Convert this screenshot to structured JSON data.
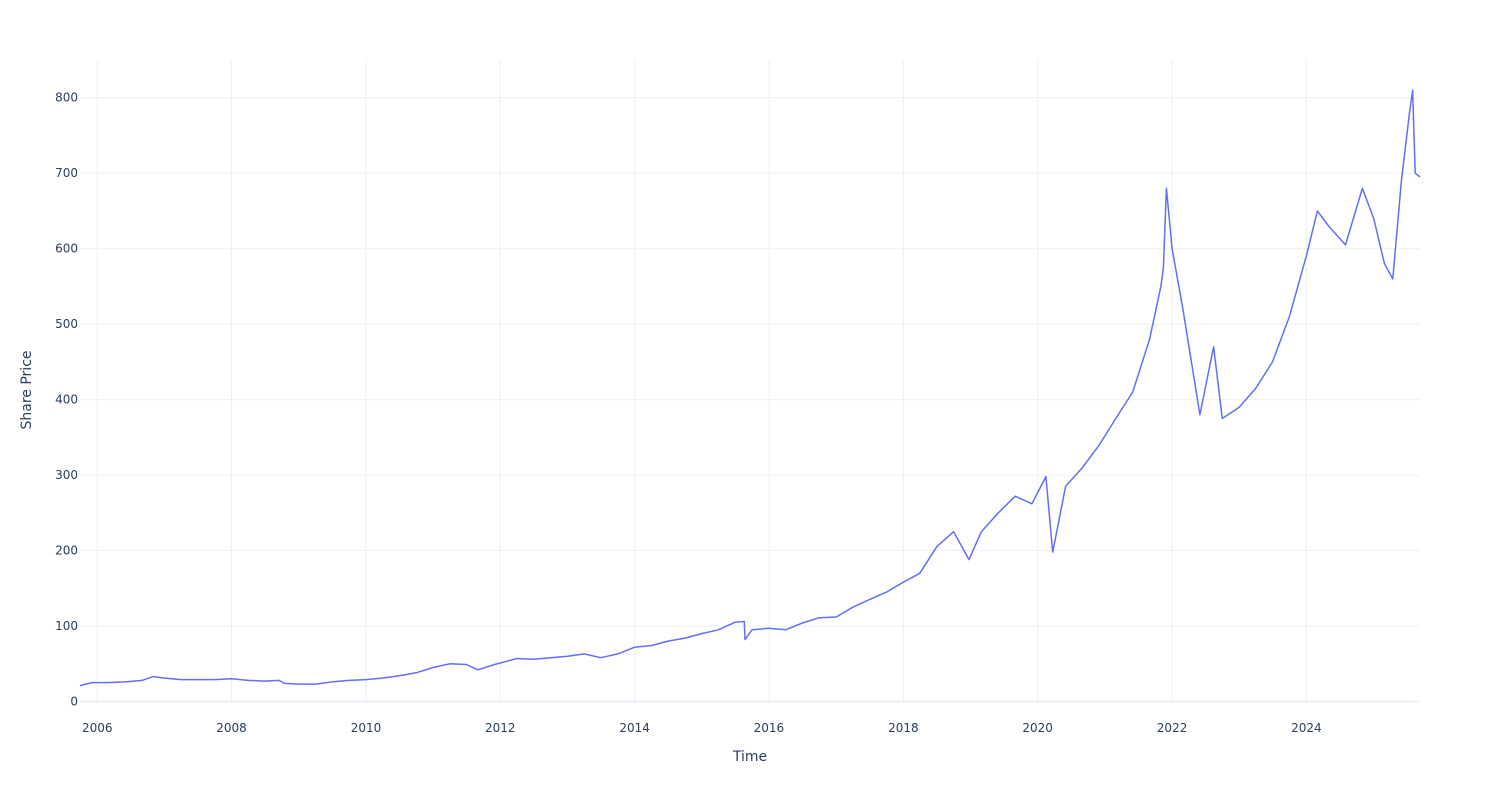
{
  "chart_data": {
    "type": "line",
    "title": "",
    "xlabel": "Time",
    "ylabel": "Share Price",
    "xlim": [
      "2005-09-29",
      "2025-09-10"
    ],
    "ylim": [
      -2,
      850
    ],
    "x_ticks": [
      "2006",
      "2008",
      "2010",
      "2012",
      "2014",
      "2016",
      "2018",
      "2020",
      "2022",
      "2024"
    ],
    "y_ticks": [
      0,
      100,
      200,
      300,
      400,
      500,
      600,
      700,
      800
    ],
    "grid": true,
    "legend": "none",
    "colors": {
      "series": "#636efa",
      "grid": "#ebf0f8",
      "text": "#2a3f5f",
      "background": "#ffffff"
    },
    "series": [
      {
        "color": "#636efa",
        "points": [
          [
            "2005-09-29",
            21
          ],
          [
            "2005-12-01",
            25
          ],
          [
            "2006-03-01",
            25
          ],
          [
            "2006-06-01",
            26
          ],
          [
            "2006-09-01",
            28
          ],
          [
            "2006-11-01",
            33
          ],
          [
            "2007-01-01",
            31
          ],
          [
            "2007-04-01",
            29
          ],
          [
            "2007-07-01",
            29
          ],
          [
            "2007-10-01",
            29
          ],
          [
            "2008-01-01",
            30
          ],
          [
            "2008-04-01",
            28
          ],
          [
            "2008-07-01",
            27
          ],
          [
            "2008-09-15",
            28
          ],
          [
            "2008-10-15",
            24
          ],
          [
            "2009-01-01",
            23
          ],
          [
            "2009-04-01",
            23
          ],
          [
            "2009-07-01",
            26
          ],
          [
            "2009-10-01",
            28
          ],
          [
            "2010-01-01",
            29
          ],
          [
            "2010-04-01",
            31
          ],
          [
            "2010-07-01",
            34
          ],
          [
            "2010-10-01",
            38
          ],
          [
            "2011-01-01",
            45
          ],
          [
            "2011-04-01",
            50
          ],
          [
            "2011-07-01",
            49
          ],
          [
            "2011-09-01",
            42
          ],
          [
            "2011-12-01",
            49
          ],
          [
            "2012-04-01",
            57
          ],
          [
            "2012-07-01",
            56
          ],
          [
            "2012-10-01",
            58
          ],
          [
            "2013-01-01",
            60
          ],
          [
            "2013-04-01",
            63
          ],
          [
            "2013-07-01",
            58
          ],
          [
            "2013-10-01",
            63
          ],
          [
            "2014-01-01",
            72
          ],
          [
            "2014-04-01",
            74
          ],
          [
            "2014-07-01",
            80
          ],
          [
            "2014-10-01",
            84
          ],
          [
            "2015-01-01",
            90
          ],
          [
            "2015-04-01",
            95
          ],
          [
            "2015-07-01",
            105
          ],
          [
            "2015-08-20",
            106
          ],
          [
            "2015-08-24",
            82
          ],
          [
            "2015-10-01",
            95
          ],
          [
            "2016-01-01",
            97
          ],
          [
            "2016-04-01",
            95
          ],
          [
            "2016-07-01",
            104
          ],
          [
            "2016-10-01",
            111
          ],
          [
            "2017-01-01",
            112
          ],
          [
            "2017-04-01",
            125
          ],
          [
            "2017-07-01",
            135
          ],
          [
            "2017-10-01",
            145
          ],
          [
            "2018-01-01",
            158
          ],
          [
            "2018-04-01",
            170
          ],
          [
            "2018-07-01",
            205
          ],
          [
            "2018-10-01",
            225
          ],
          [
            "2018-12-24",
            188
          ],
          [
            "2019-03-01",
            225
          ],
          [
            "2019-06-01",
            250
          ],
          [
            "2019-09-01",
            272
          ],
          [
            "2019-12-01",
            262
          ],
          [
            "2020-02-15",
            298
          ],
          [
            "2020-03-23",
            198
          ],
          [
            "2020-06-01",
            285
          ],
          [
            "2020-09-01",
            310
          ],
          [
            "2020-12-01",
            340
          ],
          [
            "2021-03-01",
            375
          ],
          [
            "2021-06-01",
            410
          ],
          [
            "2021-09-01",
            480
          ],
          [
            "2021-11-01",
            550
          ],
          [
            "2021-11-15",
            575
          ],
          [
            "2021-12-01",
            680
          ],
          [
            "2022-01-01",
            600
          ],
          [
            "2022-03-01",
            520
          ],
          [
            "2022-06-01",
            380
          ],
          [
            "2022-08-15",
            470
          ],
          [
            "2022-10-01",
            375
          ],
          [
            "2023-01-01",
            390
          ],
          [
            "2023-04-01",
            415
          ],
          [
            "2023-07-01",
            450
          ],
          [
            "2023-10-01",
            510
          ],
          [
            "2024-01-01",
            590
          ],
          [
            "2024-03-01",
            650
          ],
          [
            "2024-05-01",
            630
          ],
          [
            "2024-08-01",
            605
          ],
          [
            "2024-11-01",
            680
          ],
          [
            "2025-01-01",
            640
          ],
          [
            "2025-03-01",
            580
          ],
          [
            "2025-04-15",
            560
          ],
          [
            "2025-06-01",
            690
          ],
          [
            "2025-07-15",
            780
          ],
          [
            "2025-08-01",
            810
          ],
          [
            "2025-08-15",
            700
          ],
          [
            "2025-09-10",
            695
          ]
        ]
      }
    ]
  }
}
